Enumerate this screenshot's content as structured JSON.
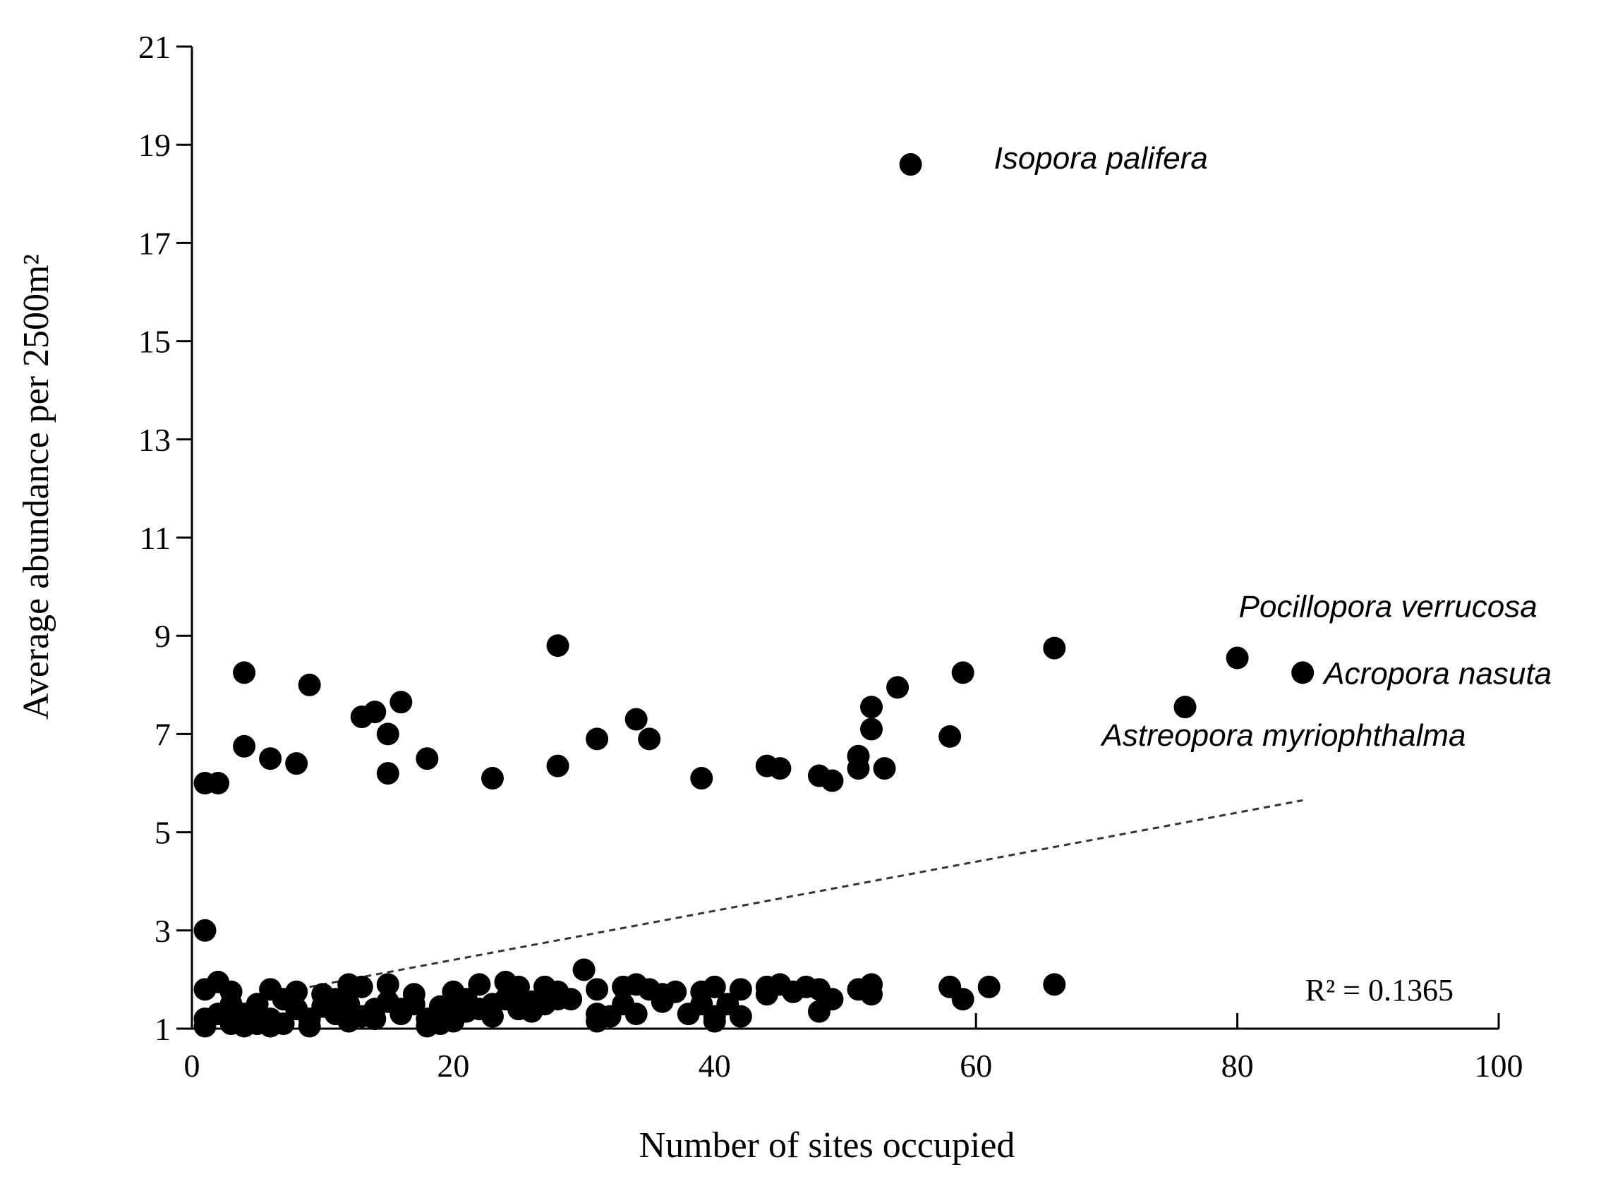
{
  "chart_data": {
    "type": "scatter",
    "xlabel": "Number of sites occupied",
    "ylabel": "Average abundance per 2500m²",
    "xlim": [
      0,
      100
    ],
    "ylim": [
      1,
      21
    ],
    "xticks": [
      0,
      20,
      40,
      60,
      80,
      100
    ],
    "yticks": [
      1,
      3,
      5,
      7,
      9,
      11,
      13,
      15,
      17,
      19,
      21
    ],
    "grid": false,
    "marker_color": "#000000",
    "trendline": {
      "type": "linear",
      "style": "dashed",
      "x": [
        9,
        85
      ],
      "y": [
        1.85,
        5.65
      ],
      "r_squared_label": "R² = 0.1365"
    },
    "annotations": [
      {
        "text": "Isopora palifera",
        "x": 55,
        "y": 18.6
      },
      {
        "text": "Pocillopora verrucosa",
        "x": 80,
        "y": 8.55
      },
      {
        "text": "Acropora nasuta",
        "x": 85,
        "y": 8.25
      },
      {
        "text": "Astreopora myriophthalma",
        "x": 76,
        "y": 7.55
      }
    ],
    "points": [
      [
        55,
        18.6
      ],
      [
        28,
        8.8
      ],
      [
        66,
        8.75
      ],
      [
        80,
        8.55
      ],
      [
        85,
        8.25
      ],
      [
        4,
        8.25
      ],
      [
        9,
        8.0
      ],
      [
        59,
        8.25
      ],
      [
        54,
        7.95
      ],
      [
        16,
        7.65
      ],
      [
        52,
        7.55
      ],
      [
        76,
        7.55
      ],
      [
        13,
        7.35
      ],
      [
        14,
        7.45
      ],
      [
        34,
        7.3
      ],
      [
        52,
        7.1
      ],
      [
        15,
        7.0
      ],
      [
        58,
        6.95
      ],
      [
        31,
        6.9
      ],
      [
        35,
        6.9
      ],
      [
        4,
        6.75
      ],
      [
        51,
        6.55
      ],
      [
        6,
        6.5
      ],
      [
        18,
        6.5
      ],
      [
        8,
        6.4
      ],
      [
        28,
        6.35
      ],
      [
        44,
        6.35
      ],
      [
        45,
        6.3
      ],
      [
        51,
        6.3
      ],
      [
        53,
        6.3
      ],
      [
        15,
        6.2
      ],
      [
        48,
        6.15
      ],
      [
        23,
        6.1
      ],
      [
        39,
        6.1
      ],
      [
        49,
        6.05
      ],
      [
        1,
        6.0
      ],
      [
        2,
        6.0
      ],
      [
        1,
        3.0
      ],
      [
        1,
        1.8
      ],
      [
        2,
        1.95
      ],
      [
        6,
        1.8
      ],
      [
        8,
        1.75
      ],
      [
        10,
        1.7
      ],
      [
        12,
        1.9
      ],
      [
        13,
        1.85
      ],
      [
        15,
        1.9
      ],
      [
        17,
        1.7
      ],
      [
        20,
        1.75
      ],
      [
        22,
        1.9
      ],
      [
        24,
        1.95
      ],
      [
        25,
        1.85
      ],
      [
        27,
        1.85
      ],
      [
        28,
        1.75
      ],
      [
        30,
        2.2
      ],
      [
        31,
        1.8
      ],
      [
        33,
        1.85
      ],
      [
        34,
        1.9
      ],
      [
        35,
        1.8
      ],
      [
        37,
        1.75
      ],
      [
        39,
        1.75
      ],
      [
        40,
        1.85
      ],
      [
        42,
        1.8
      ],
      [
        44,
        1.85
      ],
      [
        45,
        1.9
      ],
      [
        47,
        1.85
      ],
      [
        48,
        1.8
      ],
      [
        49,
        1.6
      ],
      [
        51,
        1.8
      ],
      [
        52,
        1.9
      ],
      [
        52,
        1.7
      ],
      [
        58,
        1.85
      ],
      [
        59,
        1.6
      ],
      [
        61,
        1.85
      ],
      [
        66,
        1.9
      ],
      [
        1,
        1.2
      ],
      [
        1,
        1.05
      ],
      [
        2,
        1.3
      ],
      [
        3,
        1.1
      ],
      [
        3,
        1.5
      ],
      [
        4,
        1.3
      ],
      [
        4,
        1.05
      ],
      [
        5,
        1.5
      ],
      [
        6,
        1.2
      ],
      [
        6,
        1.05
      ],
      [
        7,
        1.6
      ],
      [
        7,
        1.1
      ],
      [
        8,
        1.4
      ],
      [
        9,
        1.2
      ],
      [
        9,
        1.05
      ],
      [
        10,
        1.45
      ],
      [
        11,
        1.3
      ],
      [
        12,
        1.5
      ],
      [
        13,
        1.25
      ],
      [
        14,
        1.4
      ],
      [
        15,
        1.55
      ],
      [
        16,
        1.3
      ],
      [
        17,
        1.5
      ],
      [
        18,
        1.2
      ],
      [
        18,
        1.05
      ],
      [
        19,
        1.45
      ],
      [
        20,
        1.3
      ],
      [
        20,
        1.15
      ],
      [
        21,
        1.6
      ],
      [
        22,
        1.4
      ],
      [
        23,
        1.5
      ],
      [
        23,
        1.25
      ],
      [
        24,
        1.6
      ],
      [
        25,
        1.4
      ],
      [
        26,
        1.55
      ],
      [
        27,
        1.5
      ],
      [
        28,
        1.6
      ],
      [
        31,
        1.3
      ],
      [
        31,
        1.15
      ],
      [
        32,
        1.25
      ],
      [
        33,
        1.5
      ],
      [
        34,
        1.3
      ],
      [
        36,
        1.55
      ],
      [
        38,
        1.3
      ],
      [
        39,
        1.5
      ],
      [
        40,
        1.25
      ],
      [
        41,
        1.5
      ],
      [
        42,
        1.25
      ],
      [
        44,
        1.7
      ],
      [
        46,
        1.75
      ],
      [
        48,
        1.35
      ],
      [
        12,
        1.15
      ],
      [
        14,
        1.2
      ],
      [
        16,
        1.4
      ],
      [
        19,
        1.1
      ],
      [
        26,
        1.35
      ],
      [
        29,
        1.6
      ],
      [
        36,
        1.7
      ],
      [
        40,
        1.15
      ],
      [
        3,
        1.75
      ],
      [
        5,
        1.1
      ],
      [
        11,
        1.6
      ],
      [
        21,
        1.35
      ]
    ]
  }
}
